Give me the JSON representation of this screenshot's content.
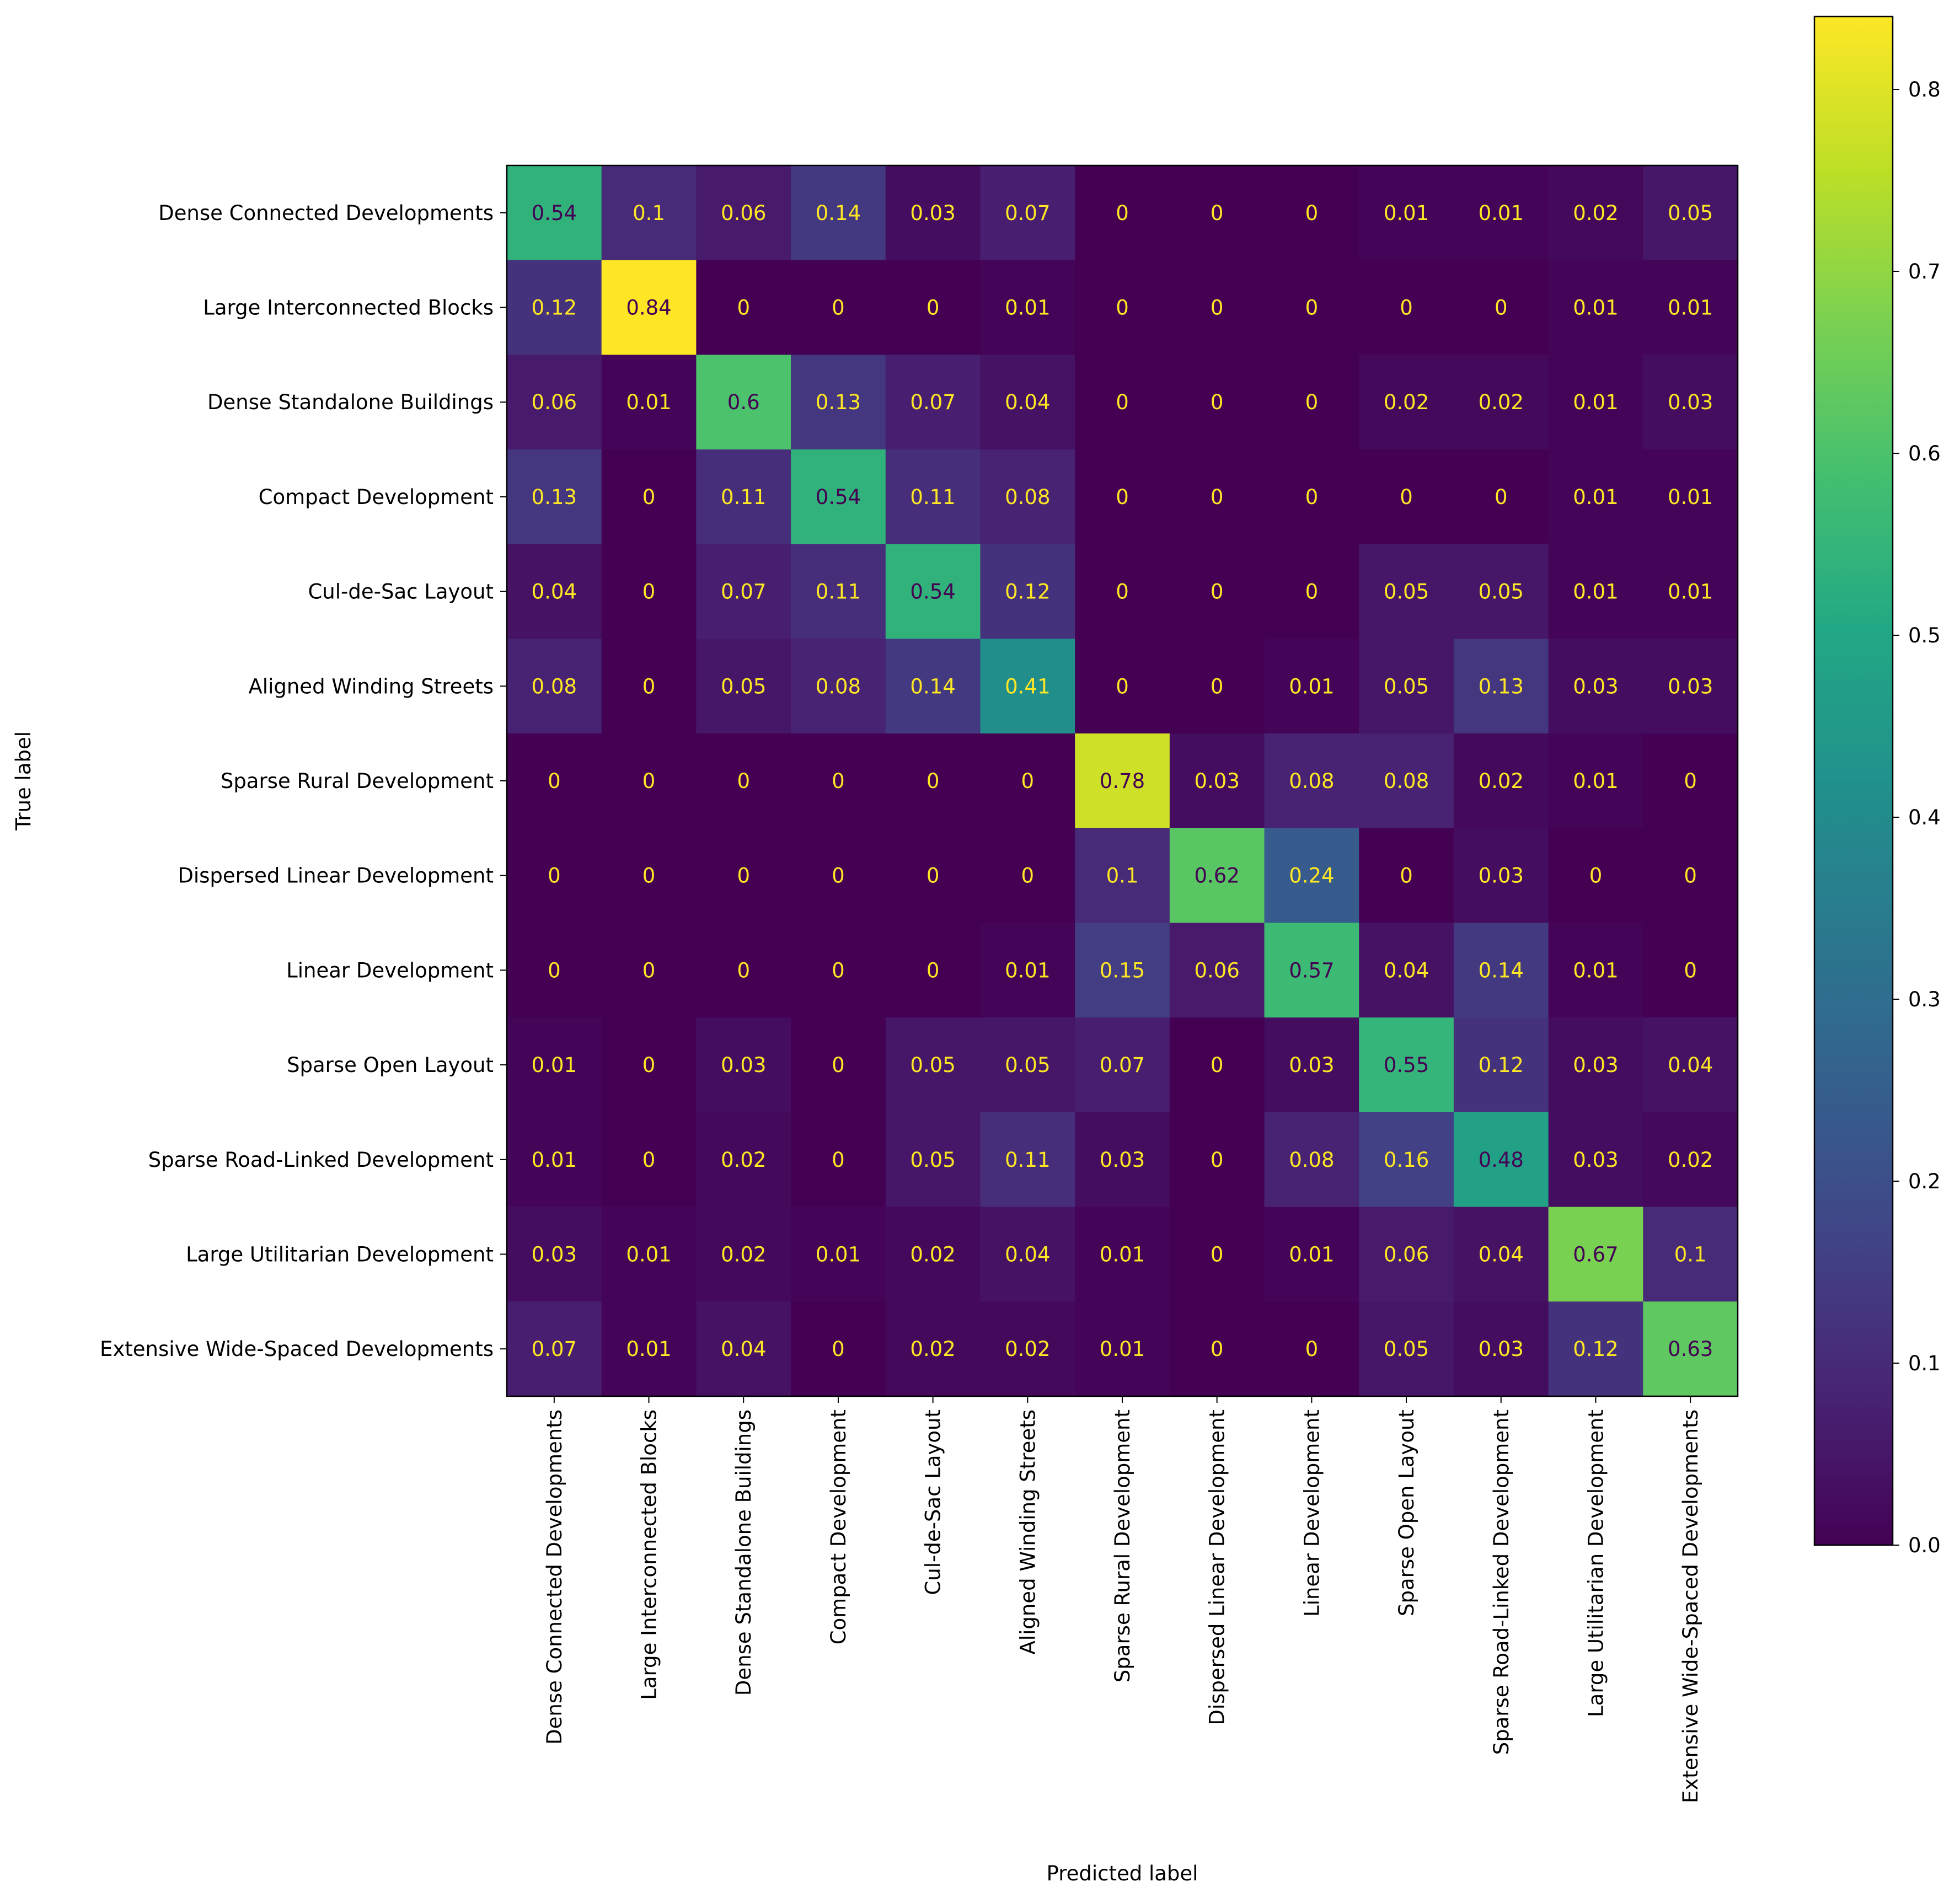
{
  "chart_data": {
    "type": "heatmap",
    "title": "",
    "xlabel": "Predicted label",
    "ylabel": "True label",
    "labels": [
      "Dense Connected Developments",
      "Large Interconnected Blocks",
      "Dense Standalone Buildings",
      "Compact Development",
      "Cul-de-Sac Layout",
      "Aligned Winding Streets",
      "Sparse Rural Development",
      "Dispersed Linear Development",
      "Linear Development",
      "Sparse Open Layout",
      "Sparse Road-Linked Development",
      "Large Utilitarian Development",
      "Extensive Wide-Spaced Developments"
    ],
    "matrix": [
      [
        0.54,
        0.1,
        0.06,
        0.14,
        0.03,
        0.07,
        0,
        0,
        0,
        0.01,
        0.01,
        0.02,
        0.05
      ],
      [
        0.12,
        0.84,
        0,
        0,
        0,
        0.01,
        0,
        0,
        0,
        0,
        0,
        0.01,
        0.01
      ],
      [
        0.06,
        0.01,
        0.6,
        0.13,
        0.07,
        0.04,
        0,
        0,
        0,
        0.02,
        0.02,
        0.01,
        0.03
      ],
      [
        0.13,
        0,
        0.11,
        0.54,
        0.11,
        0.08,
        0,
        0,
        0,
        0,
        0,
        0.01,
        0.01
      ],
      [
        0.04,
        0,
        0.07,
        0.11,
        0.54,
        0.12,
        0,
        0,
        0,
        0.05,
        0.05,
        0.01,
        0.01
      ],
      [
        0.08,
        0,
        0.05,
        0.08,
        0.14,
        0.41,
        0,
        0,
        0.01,
        0.05,
        0.13,
        0.03,
        0.03
      ],
      [
        0,
        0,
        0,
        0,
        0,
        0,
        0.78,
        0.03,
        0.08,
        0.08,
        0.02,
        0.01,
        0
      ],
      [
        0,
        0,
        0,
        0,
        0,
        0,
        0.1,
        0.62,
        0.24,
        0,
        0.03,
        0,
        0
      ],
      [
        0,
        0,
        0,
        0,
        0,
        0.01,
        0.15,
        0.06,
        0.57,
        0.04,
        0.14,
        0.01,
        0
      ],
      [
        0.01,
        0,
        0.03,
        0,
        0.05,
        0.05,
        0.07,
        0,
        0.03,
        0.55,
        0.12,
        0.03,
        0.04
      ],
      [
        0.01,
        0,
        0.02,
        0,
        0.05,
        0.11,
        0.03,
        0,
        0.08,
        0.16,
        0.48,
        0.03,
        0.02
      ],
      [
        0.03,
        0.01,
        0.02,
        0.01,
        0.02,
        0.04,
        0.01,
        0,
        0.01,
        0.06,
        0.04,
        0.67,
        0.1
      ],
      [
        0.07,
        0.01,
        0.04,
        0,
        0.02,
        0.02,
        0.01,
        0,
        0,
        0.05,
        0.03,
        0.12,
        0.63
      ]
    ],
    "colormap": "viridis",
    "vmin": 0,
    "vmax": 0.84,
    "colorbar_ticks": [
      "0.0",
      "0.1",
      "0.2",
      "0.3",
      "0.4",
      "0.5",
      "0.6",
      "0.7",
      "0.8"
    ],
    "grid": false,
    "colors": {
      "text_dark": "#440154",
      "text_light": "#fde725"
    }
  }
}
